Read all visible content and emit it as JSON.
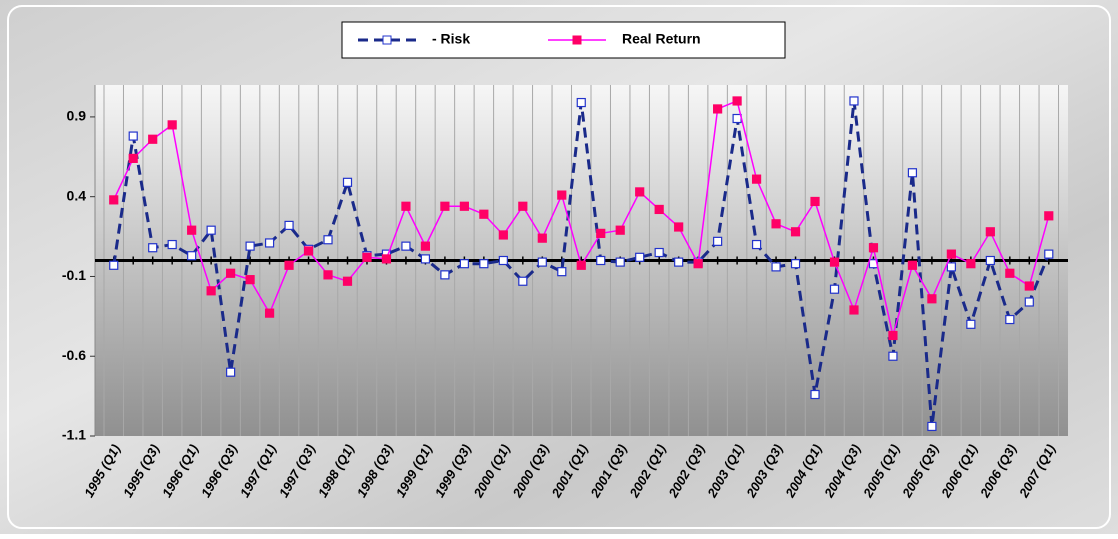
{
  "chart_data": {
    "type": "line",
    "categories": [
      "1995 (Q1)",
      null,
      "1995 (Q3)",
      null,
      "1996 (Q1)",
      null,
      "1996 (Q3)",
      null,
      "1997 (Q1)",
      null,
      "1997 (Q3)",
      null,
      "1998 (Q1)",
      null,
      "1998 (Q3)",
      null,
      "1999 (Q1)",
      null,
      "1999 (Q3)",
      null,
      "2000 (Q1)",
      null,
      "2000 (Q3)",
      null,
      "2001 (Q1)",
      null,
      "2001 (Q3)",
      null,
      "2002 (Q1)",
      null,
      "2002 (Q3)",
      null,
      "2003 (Q1)",
      null,
      "2003 (Q3)",
      null,
      "2004 (Q1)",
      null,
      "2004 (Q3)",
      null,
      "2005 (Q1)",
      null,
      "2005 (Q3)",
      null,
      "2006 (Q1)",
      null,
      "2006 (Q3)",
      null,
      "2007 (Q1)"
    ],
    "series": [
      {
        "name": "- Risk",
        "color": "#1a2a8a",
        "dashed": true,
        "values": [
          -0.03,
          0.78,
          0.08,
          0.1,
          0.03,
          0.19,
          -0.7,
          0.09,
          0.11,
          0.22,
          0.07,
          0.13,
          0.49,
          0.03,
          0.04,
          0.09,
          0.01,
          -0.09,
          -0.02,
          -0.02,
          0.0,
          -0.13,
          -0.01,
          -0.07,
          0.99,
          0.0,
          -0.01,
          0.02,
          0.05,
          -0.01,
          -0.01,
          0.12,
          0.89,
          0.1,
          -0.04,
          -0.02,
          -0.84,
          -0.18,
          1.0,
          -0.02,
          -0.6,
          0.55,
          -1.04,
          -0.04,
          -0.4,
          0.0,
          -0.37,
          -0.26,
          0.04
        ]
      },
      {
        "name": "Real Return",
        "color": "#ff00ff",
        "marker_color": "#ff0066",
        "dashed": false,
        "values": [
          0.38,
          0.64,
          0.76,
          0.85,
          0.19,
          -0.19,
          -0.08,
          -0.12,
          -0.33,
          -0.03,
          0.06,
          -0.09,
          -0.13,
          0.02,
          0.01,
          0.34,
          0.09,
          0.34,
          0.34,
          0.29,
          0.16,
          0.34,
          0.14,
          0.41,
          -0.03,
          0.17,
          0.19,
          0.43,
          0.32,
          0.21,
          -0.02,
          0.95,
          1.0,
          0.51,
          0.23,
          0.18,
          0.37,
          -0.01,
          -0.31,
          0.08,
          -0.47,
          -0.03,
          -0.24,
          0.04,
          -0.02,
          0.18,
          -0.08,
          -0.16,
          0.28
        ]
      }
    ],
    "ylim": [
      -1.1,
      1.1
    ],
    "yticks": [
      0.9,
      0.4,
      -0.1,
      -0.6,
      -1.1
    ],
    "legend": "top"
  }
}
